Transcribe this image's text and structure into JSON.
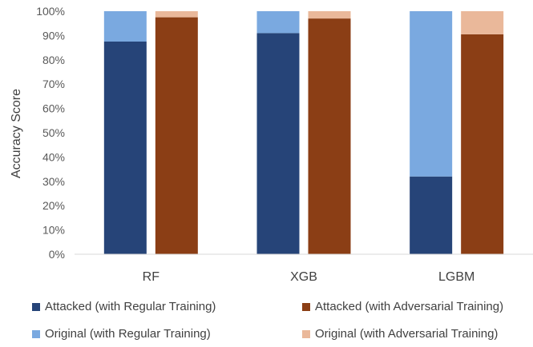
{
  "chart_data": {
    "type": "bar",
    "stacked": true,
    "grouped": true,
    "categories": [
      "RF",
      "XGB",
      "LGBM"
    ],
    "ylabel": "Accuracy Score",
    "ylim": [
      0,
      100
    ],
    "yticks": [
      "0%",
      "10%",
      "20%",
      "30%",
      "40%",
      "50%",
      "60%",
      "70%",
      "80%",
      "90%",
      "100%"
    ],
    "grid": false,
    "legend_position": "bottom",
    "groups": [
      {
        "name": "Regular Training",
        "series": [
          {
            "name": "Attacked (with Regular Training)",
            "values": [
              87.5,
              91,
              32
            ],
            "color": "#264478"
          },
          {
            "name": "Original (with Regular Training)",
            "values": [
              12.5,
              9,
              68
            ],
            "color": "#7aa9e0"
          }
        ]
      },
      {
        "name": "Adversarial Training",
        "series": [
          {
            "name": "Attacked (with Adversarial Training)",
            "values": [
              97.5,
              97,
              90.5
            ],
            "color": "#8b3e15"
          },
          {
            "name": "Original (with Adversarial Training)",
            "values": [
              2.5,
              3,
              9.5
            ],
            "color": "#eab89a"
          }
        ]
      }
    ]
  },
  "legend": [
    {
      "label": "Attacked (with Regular Training)",
      "color": "#264478"
    },
    {
      "label": "Attacked (with Adversarial Training)",
      "color": "#8b3e15"
    },
    {
      "label": "Original (with Regular Training)",
      "color": "#7aa9e0"
    },
    {
      "label": "Original (with Adversarial Training)",
      "color": "#eab89a"
    }
  ]
}
